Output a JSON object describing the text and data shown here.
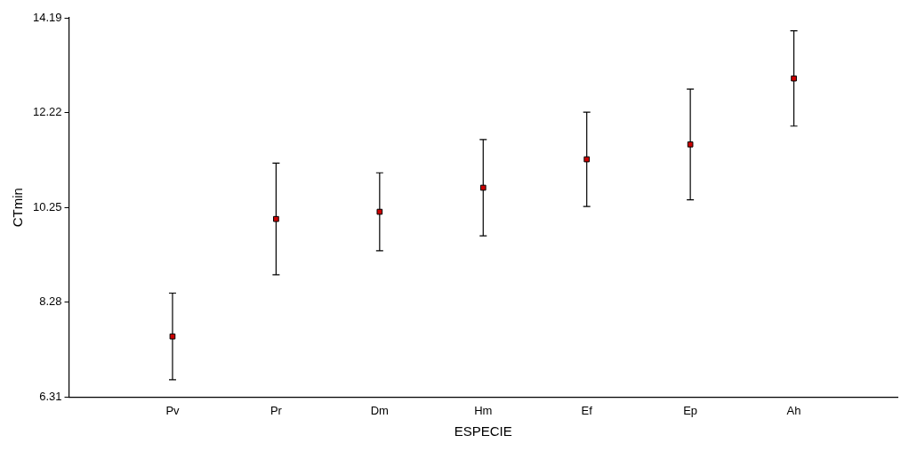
{
  "chart_data": {
    "type": "scatter",
    "xlabel": "ESPECIE",
    "ylabel": "CTmin",
    "categories": [
      "Pv",
      "Pr",
      "Dm",
      "Hm",
      "Ef",
      "Ep",
      "Ah"
    ],
    "values": [
      7.57,
      10.01,
      10.16,
      10.66,
      11.25,
      11.56,
      12.93
    ],
    "errors": [
      0.9,
      1.16,
      0.81,
      1.0,
      0.98,
      1.15,
      0.99
    ],
    "color": "#cc0000",
    "marker": "square",
    "ylim": [
      6.31,
      14.19
    ],
    "yticks": [
      6.31,
      8.28,
      10.25,
      12.22,
      14.19
    ],
    "grid": false,
    "legend": false
  }
}
